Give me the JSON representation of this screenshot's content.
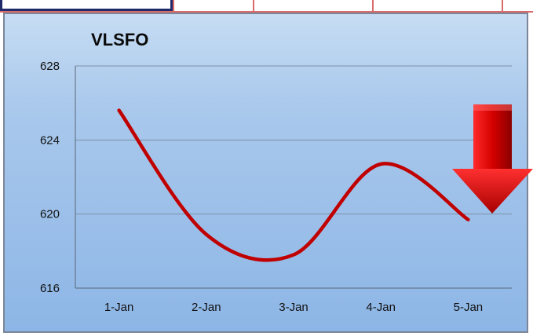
{
  "chart_data": {
    "type": "line",
    "title": "VLSFO",
    "xlabel": "",
    "ylabel": "",
    "categories": [
      "1-Jan",
      "2-Jan",
      "3-Jan",
      "4-Jan",
      "5-Jan"
    ],
    "series": [
      {
        "values": [
          625.6,
          618.9,
          617.8,
          622.7,
          619.7
        ]
      }
    ],
    "ylim": [
      616,
      628
    ],
    "yticks": [
      "616",
      "620",
      "624",
      "628"
    ],
    "grid": true,
    "smoothed": true,
    "trend_indicator": "down",
    "colors": {
      "line": "#c00000",
      "arrow": "#d90000",
      "grid": "#7f8fa6",
      "background": "#9ec2ee"
    }
  }
}
